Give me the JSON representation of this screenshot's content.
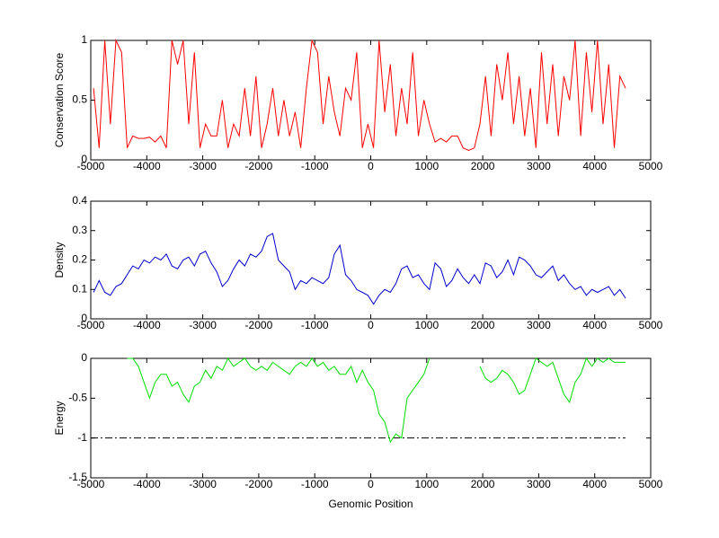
{
  "chart_data": [
    {
      "type": "line",
      "ylabel": "Conservation Score",
      "xlim": [
        -5000,
        5000
      ],
      "ylim": [
        0,
        1
      ],
      "xticks": [
        -5000,
        -4000,
        -3000,
        -2000,
        -1000,
        0,
        1000,
        2000,
        3000,
        4000,
        5000
      ],
      "yticks": [
        0,
        0.5,
        1
      ],
      "series": [
        {
          "color": "#ff0000",
          "x": [
            -4950,
            -4850,
            -4750,
            -4650,
            -4550,
            -4450,
            -4350,
            -4250,
            -4150,
            -4050,
            -3950,
            -3850,
            -3750,
            -3650,
            -3550,
            -3450,
            -3350,
            -3250,
            -3150,
            -3050,
            -2950,
            -2850,
            -2750,
            -2650,
            -2550,
            -2450,
            -2350,
            -2250,
            -2150,
            -2050,
            -1950,
            -1850,
            -1750,
            -1650,
            -1550,
            -1450,
            -1350,
            -1250,
            -1150,
            -1050,
            -950,
            -850,
            -750,
            -650,
            -550,
            -450,
            -350,
            -250,
            -150,
            -50,
            50,
            150,
            250,
            350,
            450,
            550,
            650,
            750,
            850,
            950,
            1050,
            1150,
            1250,
            1350,
            1450,
            1550,
            1650,
            1750,
            1850,
            1950,
            2050,
            2150,
            2250,
            2350,
            2450,
            2550,
            2650,
            2750,
            2850,
            2950,
            3050,
            3150,
            3250,
            3350,
            3450,
            3550,
            3650,
            3750,
            3850,
            3950,
            4050,
            4150,
            4250,
            4350,
            4450,
            4550
          ],
          "values": [
            0.6,
            0.1,
            1,
            0.3,
            1,
            0.9,
            0.1,
            0.2,
            0.18,
            0.18,
            0.19,
            0.15,
            0.2,
            0.1,
            1,
            0.8,
            1,
            0.3,
            0.9,
            0.1,
            0.3,
            0.2,
            0.2,
            0.5,
            0.1,
            0.3,
            0.2,
            0.6,
            0.2,
            0.7,
            0.1,
            0.3,
            0.6,
            0.2,
            0.5,
            0.2,
            0.4,
            0.1,
            0.6,
            1,
            0.9,
            0.3,
            0.7,
            0.4,
            0.2,
            0.6,
            0.5,
            0.9,
            0.1,
            0.3,
            0.1,
            1,
            0.4,
            0.8,
            0.2,
            0.6,
            0.3,
            0.9,
            0.2,
            0.5,
            0.3,
            0.15,
            0.18,
            0.15,
            0.2,
            0.2,
            0.1,
            0.08,
            0.1,
            0.3,
            0.7,
            0.2,
            0.8,
            0.5,
            0.9,
            0.3,
            0.7,
            0.2,
            0.6,
            0.1,
            0.9,
            0.3,
            0.8,
            0.2,
            0.7,
            0.5,
            1,
            0.2,
            0.9,
            0.4,
            1,
            0.3,
            0.8,
            0.1,
            0.7,
            0.6
          ]
        }
      ]
    },
    {
      "type": "line",
      "ylabel": "Density",
      "xlim": [
        -5000,
        5000
      ],
      "ylim": [
        0,
        0.4
      ],
      "xticks": [
        -5000,
        -4000,
        -3000,
        -2000,
        -1000,
        0,
        1000,
        2000,
        3000,
        4000,
        5000
      ],
      "yticks": [
        0,
        0.1,
        0.2,
        0.3,
        0.4
      ],
      "series": [
        {
          "color": "#0000cc",
          "x": [
            -4950,
            -4850,
            -4750,
            -4650,
            -4550,
            -4450,
            -4350,
            -4250,
            -4150,
            -4050,
            -3950,
            -3850,
            -3750,
            -3650,
            -3550,
            -3450,
            -3350,
            -3250,
            -3150,
            -3050,
            -2950,
            -2850,
            -2750,
            -2650,
            -2550,
            -2450,
            -2350,
            -2250,
            -2150,
            -2050,
            -1950,
            -1850,
            -1750,
            -1650,
            -1550,
            -1450,
            -1350,
            -1250,
            -1150,
            -1050,
            -950,
            -850,
            -750,
            -650,
            -550,
            -450,
            -350,
            -250,
            -150,
            -50,
            50,
            150,
            250,
            350,
            450,
            550,
            650,
            750,
            850,
            950,
            1050,
            1150,
            1250,
            1350,
            1450,
            1550,
            1650,
            1750,
            1850,
            1950,
            2050,
            2150,
            2250,
            2350,
            2450,
            2550,
            2650,
            2750,
            2850,
            2950,
            3050,
            3150,
            3250,
            3350,
            3450,
            3550,
            3650,
            3750,
            3850,
            3950,
            4050,
            4150,
            4250,
            4350,
            4450,
            4550
          ],
          "values": [
            0.09,
            0.13,
            0.09,
            0.08,
            0.11,
            0.12,
            0.15,
            0.18,
            0.17,
            0.2,
            0.19,
            0.21,
            0.2,
            0.22,
            0.18,
            0.17,
            0.2,
            0.21,
            0.18,
            0.22,
            0.23,
            0.19,
            0.16,
            0.11,
            0.13,
            0.17,
            0.2,
            0.18,
            0.22,
            0.21,
            0.23,
            0.28,
            0.29,
            0.2,
            0.18,
            0.16,
            0.1,
            0.13,
            0.12,
            0.14,
            0.13,
            0.12,
            0.14,
            0.22,
            0.25,
            0.15,
            0.13,
            0.1,
            0.09,
            0.08,
            0.05,
            0.08,
            0.1,
            0.09,
            0.12,
            0.17,
            0.18,
            0.14,
            0.15,
            0.12,
            0.1,
            0.19,
            0.17,
            0.11,
            0.13,
            0.17,
            0.14,
            0.12,
            0.15,
            0.12,
            0.19,
            0.18,
            0.14,
            0.16,
            0.2,
            0.15,
            0.21,
            0.2,
            0.18,
            0.15,
            0.14,
            0.16,
            0.18,
            0.13,
            0.15,
            0.12,
            0.1,
            0.11,
            0.08,
            0.1,
            0.09,
            0.1,
            0.11,
            0.08,
            0.1,
            0.07
          ]
        }
      ]
    },
    {
      "type": "line",
      "ylabel": "Energy",
      "xlabel": "Genomic Position",
      "xlim": [
        -5000,
        5000
      ],
      "ylim": [
        -1.5,
        0
      ],
      "xticks": [
        -5000,
        -4000,
        -3000,
        -2000,
        -1000,
        0,
        1000,
        2000,
        3000,
        4000,
        5000
      ],
      "yticks": [
        -1.5,
        -1,
        -0.5,
        0
      ],
      "reference_line": {
        "y": -1,
        "x": [
          -5000,
          4550
        ],
        "color": "#000000"
      },
      "series": [
        {
          "color": "#00dd00",
          "x": [
            -4350,
            -4250,
            -4150,
            -4050,
            -3950,
            -3850,
            -3750,
            -3650,
            -3550,
            -3450,
            -3350,
            -3250,
            -3150,
            -3050,
            -2950,
            -2850,
            -2750,
            -2650,
            -2550,
            -2450,
            -2350,
            -2250,
            -2150,
            -2050,
            -1950,
            -1850,
            -1750,
            -1650,
            -1550,
            -1450,
            -1350,
            -1250,
            -1150,
            -1050,
            -950,
            -850,
            -750,
            -650,
            -550,
            -450,
            -350,
            -250,
            -150,
            -50,
            50,
            150,
            250,
            350,
            450,
            550,
            650,
            750,
            850,
            950,
            1050,
            1150,
            1250,
            1350,
            1450,
            1550,
            1650,
            1750,
            1850,
            1950,
            2050,
            2150,
            2250,
            2350,
            2450,
            2550,
            2650,
            2750,
            2850,
            2950,
            3050,
            3150,
            3250,
            3350,
            3450,
            3550,
            3650,
            3750,
            3850,
            3950,
            4050,
            4150,
            4250,
            4350,
            4450,
            4550
          ],
          "values": [
            0,
            0,
            -0.1,
            -0.3,
            -0.5,
            -0.3,
            -0.2,
            -0.2,
            -0.35,
            -0.3,
            -0.45,
            -0.55,
            -0.35,
            -0.3,
            -0.15,
            -0.25,
            -0.1,
            -0.15,
            0,
            -0.1,
            -0.05,
            0,
            -0.1,
            -0.15,
            -0.1,
            -0.15,
            -0.05,
            -0.1,
            -0.15,
            -0.2,
            -0.1,
            -0.05,
            -0.1,
            0,
            -0.1,
            -0.05,
            -0.15,
            -0.1,
            -0.2,
            -0.2,
            -0.1,
            -0.3,
            -0.15,
            -0.3,
            -0.4,
            -0.7,
            -0.8,
            -1.05,
            -0.95,
            -1,
            -0.5,
            -0.4,
            -0.3,
            -0.2,
            0,
            null,
            null,
            null,
            null,
            null,
            null,
            null,
            null,
            -0.1,
            -0.25,
            -0.3,
            -0.25,
            -0.15,
            -0.2,
            -0.3,
            -0.45,
            -0.4,
            -0.2,
            0,
            -0.05,
            -0.1,
            -0.05,
            -0.25,
            -0.45,
            -0.55,
            -0.3,
            -0.2,
            0,
            -0.1,
            0,
            -0.05,
            0,
            -0.05,
            -0.05,
            -0.05
          ]
        }
      ]
    }
  ]
}
